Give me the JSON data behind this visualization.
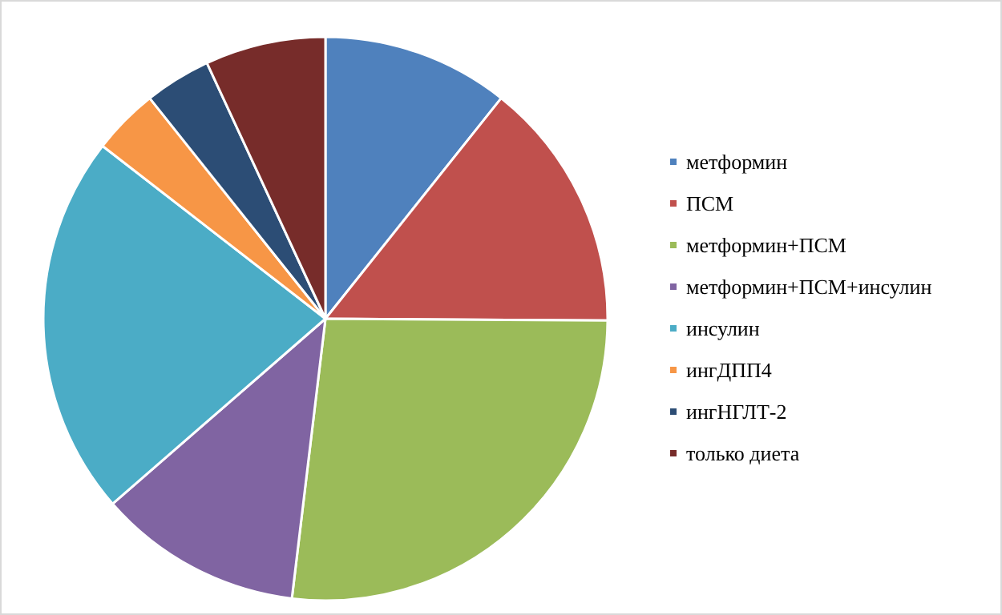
{
  "chart_data": {
    "type": "pie",
    "categories": [
      "метформин",
      "ПСМ",
      "метформин+ПСМ",
      "метформин+ПСМ+инсулин",
      "инсулин",
      "ингДПП4",
      "ингНГЛТ-2",
      "только диета"
    ],
    "values": [
      10.7,
      14.4,
      26.8,
      11.7,
      21.9,
      3.8,
      3.8,
      6.9
    ],
    "colors": [
      "#4f81bd",
      "#c0504d",
      "#9bbb59",
      "#8064a2",
      "#4bacc6",
      "#f79646",
      "#2c4d75",
      "#772c2a"
    ],
    "legend": "right"
  }
}
